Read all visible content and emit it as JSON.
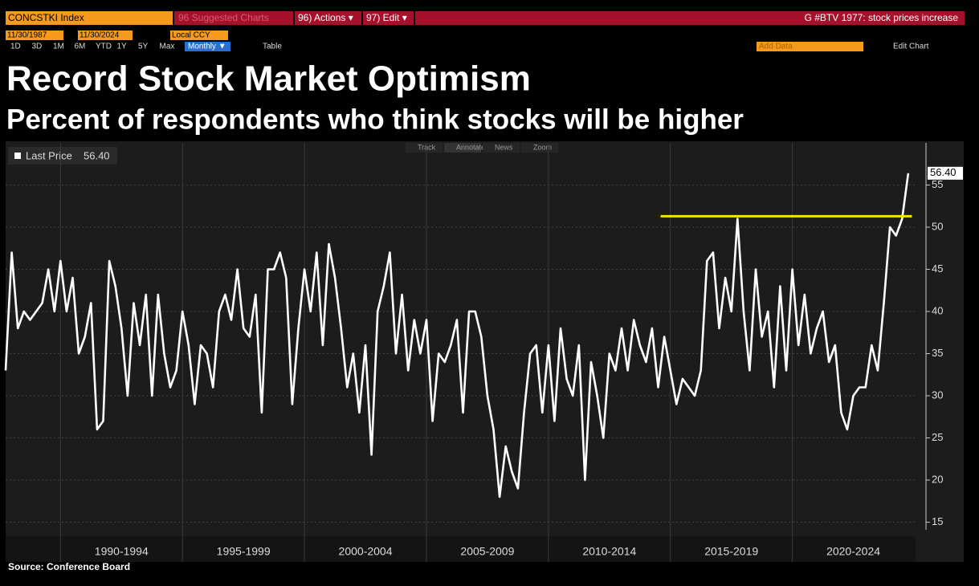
{
  "toolbar": {
    "ticker": "CONCSTKI Index",
    "suggested": "96 Suggested Charts",
    "actions": "96) Actions ▾",
    "edit": "97) Edit ▾",
    "headline": "G #BTV 1977: stock prices increase",
    "start_date": "11/30/1987",
    "end_date": "11/30/2024",
    "currency": "Local CCY",
    "periods": [
      "1D",
      "3D",
      "1M",
      "6M",
      "YTD",
      "1Y",
      "5Y",
      "Max"
    ],
    "frequency": "Monthly ▼",
    "table": "Table",
    "add_data": "Add Data",
    "edit_chart": "Edit Chart",
    "chart_tools": [
      "Track",
      "Annotate",
      "News",
      "Zoom"
    ]
  },
  "chart_data": {
    "type": "line",
    "title": "Record Stock Market Optimism",
    "subtitle": "Percent of respondents who think stocks will be higher",
    "source": "Source: Conference Board",
    "x": [
      1987.75,
      1988,
      1988.25,
      1988.5,
      1988.75,
      1989,
      1989.25,
      1989.5,
      1989.75,
      1990,
      1990.25,
      1990.5,
      1990.75,
      1991,
      1991.25,
      1991.5,
      1991.75,
      1992,
      1992.25,
      1992.5,
      1992.75,
      1993,
      1993.25,
      1993.5,
      1993.75,
      1994,
      1994.25,
      1994.5,
      1994.75,
      1995,
      1995.25,
      1995.5,
      1995.75,
      1996,
      1996.25,
      1996.5,
      1996.75,
      1997,
      1997.25,
      1997.5,
      1997.75,
      1998,
      1998.25,
      1998.5,
      1998.75,
      1999,
      1999.25,
      1999.5,
      1999.75,
      2000,
      2000.25,
      2000.5,
      2000.75,
      2001,
      2001.25,
      2001.5,
      2001.75,
      2002,
      2002.25,
      2002.5,
      2002.75,
      2003,
      2003.25,
      2003.5,
      2003.75,
      2004,
      2004.25,
      2004.5,
      2004.75,
      2005,
      2005.25,
      2005.5,
      2005.75,
      2006,
      2006.25,
      2006.5,
      2006.75,
      2007,
      2007.25,
      2007.5,
      2007.75,
      2008,
      2008.25,
      2008.5,
      2008.75,
      2009,
      2009.25,
      2009.5,
      2009.75,
      2010,
      2010.25,
      2010.5,
      2010.75,
      2011,
      2011.25,
      2011.5,
      2011.75,
      2012,
      2012.25,
      2012.5,
      2012.75,
      2013,
      2013.25,
      2013.5,
      2013.75,
      2014,
      2014.25,
      2014.5,
      2014.75,
      2015,
      2015.25,
      2015.5,
      2015.75,
      2016,
      2016.25,
      2016.5,
      2016.75,
      2017,
      2017.25,
      2017.5,
      2017.75,
      2018,
      2018.25,
      2018.5,
      2018.75,
      2019,
      2019.25,
      2019.5,
      2019.75,
      2020,
      2020.25,
      2020.5,
      2020.75,
      2021,
      2021.25,
      2021.5,
      2021.75,
      2022,
      2022.25,
      2022.5,
      2022.75,
      2023,
      2023.25,
      2023.5,
      2023.75,
      2024,
      2024.25,
      2024.5,
      2024.75
    ],
    "series": [
      {
        "name": "Last Price",
        "color": "#ffffff",
        "values": [
          33,
          47,
          38,
          40,
          39,
          40,
          41,
          45,
          40,
          46,
          40,
          44,
          35,
          37,
          41,
          26,
          27,
          46,
          43,
          38,
          30,
          41,
          36,
          42,
          30,
          42,
          35,
          31,
          33,
          40,
          36,
          29,
          36,
          35,
          31,
          40,
          42,
          39,
          45,
          38,
          37,
          42,
          28,
          45,
          45,
          47,
          44,
          29,
          38,
          45,
          40,
          47,
          36,
          48,
          44,
          38,
          31,
          35,
          28,
          36,
          23,
          40,
          43,
          47,
          35,
          42,
          33,
          39,
          35,
          39,
          27,
          35,
          34,
          36,
          39,
          28,
          40,
          40,
          37,
          30,
          26,
          18,
          24,
          21,
          19,
          28,
          35,
          36,
          28,
          36,
          27,
          38,
          32,
          30,
          36,
          20,
          34,
          30,
          25,
          35,
          33,
          38,
          33,
          39,
          36,
          34,
          38,
          31,
          37,
          33,
          29,
          32,
          31,
          30,
          33,
          46,
          47,
          38,
          44,
          40,
          51,
          40,
          33,
          45,
          37,
          40,
          31,
          43,
          33,
          45,
          36,
          42,
          35,
          38,
          40,
          34,
          36,
          28,
          26,
          30,
          31,
          31,
          36,
          33,
          41,
          50,
          49,
          51,
          56.4
        ]
      }
    ],
    "last_price_label": "56.40",
    "reference_line": {
      "value": 51.3,
      "color": "#f2e600",
      "xlim": [
        2014.6,
        2024.9
      ]
    },
    "xlim": [
      1987.75,
      2025.05
    ],
    "ylim": [
      14.1,
      60
    ],
    "xticks": [
      {
        "value": 1992.5,
        "label": "1990-1994"
      },
      {
        "value": 1997.5,
        "label": "1995-1999"
      },
      {
        "value": 2002.5,
        "label": "2000-2004"
      },
      {
        "value": 2007.5,
        "label": "2005-2009"
      },
      {
        "value": 2012.5,
        "label": "2010-2014"
      },
      {
        "value": 2017.5,
        "label": "2015-2019"
      },
      {
        "value": 2022.5,
        "label": "2020-2024"
      }
    ],
    "yticks": [
      15,
      20,
      25,
      30,
      35,
      40,
      45,
      50,
      55
    ],
    "grid": true
  }
}
